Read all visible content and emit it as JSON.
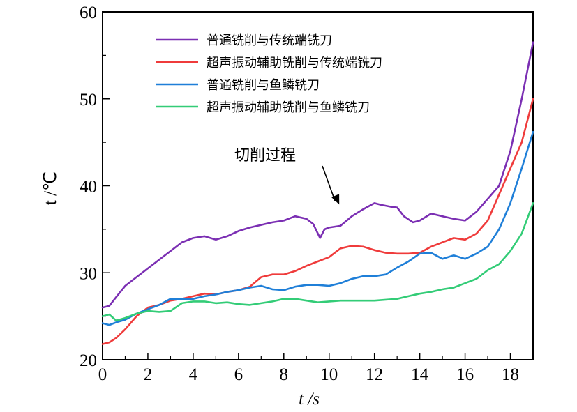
{
  "chart_data": {
    "type": "line",
    "title": "",
    "xlabel": "t /s",
    "ylabel": "t /℃",
    "xlim": [
      0,
      19
    ],
    "ylim": [
      20,
      60
    ],
    "xticks": [
      0,
      2,
      4,
      6,
      8,
      10,
      12,
      14,
      16,
      18
    ],
    "yticks": [
      20,
      30,
      40,
      50,
      60
    ],
    "grid": false,
    "legend_position": "top-left",
    "annotation": {
      "text": "切削过程",
      "target": [
        11,
        37.2
      ]
    },
    "series": [
      {
        "name": "普通铣削与传统端铣刀",
        "color": "#7b2fb3",
        "x": [
          0,
          0.3,
          0.6,
          1,
          1.5,
          2,
          2.5,
          3,
          3.5,
          4,
          4.5,
          5,
          5.5,
          6,
          6.5,
          7,
          7.5,
          8,
          8.5,
          9,
          9.3,
          9.6,
          9.8,
          10,
          10.5,
          11,
          11.5,
          12,
          12.3,
          12.7,
          13,
          13.3,
          13.7,
          14,
          14.5,
          15,
          15.5,
          16,
          16.5,
          17,
          17.5,
          18,
          18.5,
          19
        ],
        "y": [
          26,
          26.2,
          27.2,
          28.5,
          29.5,
          30.5,
          31.5,
          32.5,
          33.5,
          34,
          34.2,
          33.8,
          34.2,
          34.8,
          35.2,
          35.5,
          35.8,
          36,
          36.5,
          36.2,
          35.6,
          34,
          35,
          35.2,
          35.4,
          36.5,
          37.3,
          38,
          37.8,
          37.6,
          37.5,
          36.5,
          35.8,
          36,
          36.8,
          36.5,
          36.2,
          36,
          37,
          38.5,
          40,
          44,
          50,
          56.5
        ]
      },
      {
        "name": "超声振动辅助铣削与传统端铣刀",
        "color": "#ef3b3b",
        "x": [
          0,
          0.3,
          0.6,
          1,
          1.5,
          2,
          2.5,
          3,
          3.5,
          4,
          4.5,
          5,
          5.5,
          6,
          6.5,
          7,
          7.5,
          8,
          8.5,
          9,
          9.5,
          10,
          10.5,
          11,
          11.5,
          12,
          12.5,
          13,
          13.5,
          14,
          14.5,
          15,
          15.5,
          16,
          16.5,
          17,
          17.5,
          18,
          18.5,
          19
        ],
        "y": [
          21.8,
          22,
          22.5,
          23.5,
          25,
          26,
          26.3,
          26.8,
          27,
          27.3,
          27.6,
          27.5,
          27.8,
          28,
          28.4,
          29.5,
          29.8,
          29.8,
          30.2,
          30.8,
          31.3,
          31.8,
          32.8,
          33.1,
          33,
          32.6,
          32.3,
          32.2,
          32.2,
          32.3,
          33,
          33.5,
          34,
          33.8,
          34.5,
          36,
          39,
          42,
          45,
          50
        ]
      },
      {
        "name": "普通铣削与鱼鳞铣刀",
        "color": "#1f7fd8",
        "x": [
          0,
          0.3,
          0.6,
          1,
          1.5,
          2,
          2.5,
          3,
          3.5,
          4,
          4.5,
          5,
          5.5,
          6,
          6.5,
          7,
          7.5,
          8,
          8.5,
          9,
          9.5,
          10,
          10.5,
          11,
          11.5,
          12,
          12.5,
          13,
          13.5,
          14,
          14.5,
          15,
          15.5,
          16,
          16.5,
          17,
          17.5,
          18,
          18.5,
          19
        ],
        "y": [
          24.2,
          24,
          24.3,
          24.6,
          25.3,
          25.8,
          26.3,
          27,
          27,
          27,
          27.3,
          27.5,
          27.8,
          28,
          28.3,
          28.5,
          28.1,
          28,
          28.4,
          28.6,
          28.6,
          28.5,
          28.8,
          29.3,
          29.6,
          29.6,
          29.8,
          30.6,
          31.3,
          32.2,
          32.3,
          31.6,
          32,
          31.6,
          32.2,
          33,
          35,
          38,
          42,
          46.2
        ]
      },
      {
        "name": "超声振动辅助铣削与鱼鳞铣刀",
        "color": "#33cc77",
        "x": [
          0,
          0.3,
          0.6,
          1,
          1.5,
          2,
          2.5,
          3,
          3.5,
          4,
          4.5,
          5,
          5.5,
          6,
          6.5,
          7,
          7.5,
          8,
          8.5,
          9,
          9.5,
          10,
          10.5,
          11,
          11.5,
          12,
          12.5,
          13,
          13.5,
          14,
          14.5,
          15,
          15.5,
          16,
          16.5,
          17,
          17.5,
          18,
          18.5,
          19
        ],
        "y": [
          25,
          25.2,
          24.5,
          24.8,
          25.3,
          25.6,
          25.5,
          25.6,
          26.5,
          26.7,
          26.7,
          26.5,
          26.6,
          26.4,
          26.3,
          26.5,
          26.7,
          27,
          27,
          26.8,
          26.6,
          26.7,
          26.8,
          26.8,
          26.8,
          26.8,
          26.9,
          27,
          27.3,
          27.6,
          27.8,
          28.1,
          28.3,
          28.8,
          29.3,
          30.3,
          31,
          32.5,
          34.5,
          38
        ]
      }
    ]
  }
}
